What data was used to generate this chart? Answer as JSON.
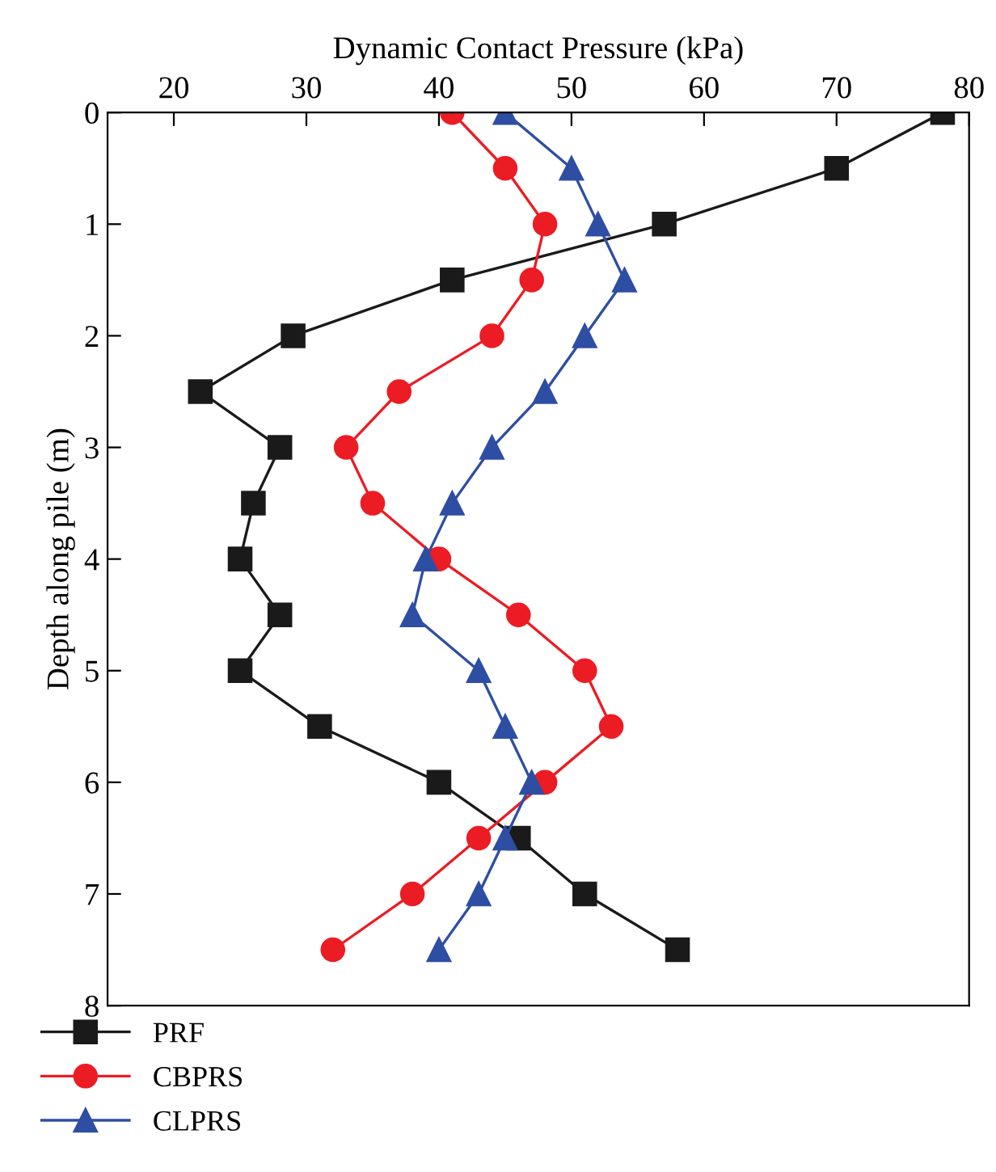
{
  "chart_data": {
    "type": "line",
    "xlabel": "Dynamic Contact Pressure (kPa)",
    "ylabel": "Depth along pile (m)",
    "xlim": [
      15,
      80
    ],
    "xticks": [
      20,
      30,
      40,
      50,
      60,
      70,
      80
    ],
    "ylim": [
      8,
      0
    ],
    "yticks": [
      0,
      1,
      2,
      3,
      4,
      5,
      6,
      7,
      8
    ],
    "grid": false,
    "legend": "bottom left",
    "series": [
      {
        "name": "PRF",
        "color": "#1a1a1a",
        "marker": "square",
        "x": [
          78,
          70,
          57,
          41,
          29,
          22,
          28,
          26,
          25,
          28,
          25,
          31,
          40,
          46,
          51,
          58
        ],
        "values": [
          0,
          0.5,
          1,
          1.5,
          2,
          2.5,
          3,
          3.5,
          4,
          4.5,
          5,
          5.5,
          6,
          6.5,
          7,
          7.5
        ]
      },
      {
        "name": "CBPRS",
        "color": "#ec1c24",
        "marker": "circle",
        "x": [
          41,
          45,
          48,
          47,
          44,
          37,
          33,
          35,
          40,
          46,
          51,
          53,
          48,
          43,
          38,
          32
        ],
        "values": [
          0,
          0.5,
          1,
          1.5,
          2,
          2.5,
          3,
          3.5,
          4,
          4.5,
          5,
          5.5,
          6,
          6.5,
          7,
          7.5
        ]
      },
      {
        "name": "CLPRS",
        "color": "#2e4ea3",
        "marker": "triangle",
        "x": [
          45,
          50,
          52,
          54,
          51,
          48,
          44,
          41,
          39,
          38,
          43,
          45,
          47,
          45,
          43,
          40
        ],
        "values": [
          0,
          0.5,
          1,
          1.5,
          2,
          2.5,
          3,
          3.5,
          4,
          4.5,
          5,
          5.5,
          6,
          6.5,
          7,
          7.5
        ]
      }
    ]
  }
}
